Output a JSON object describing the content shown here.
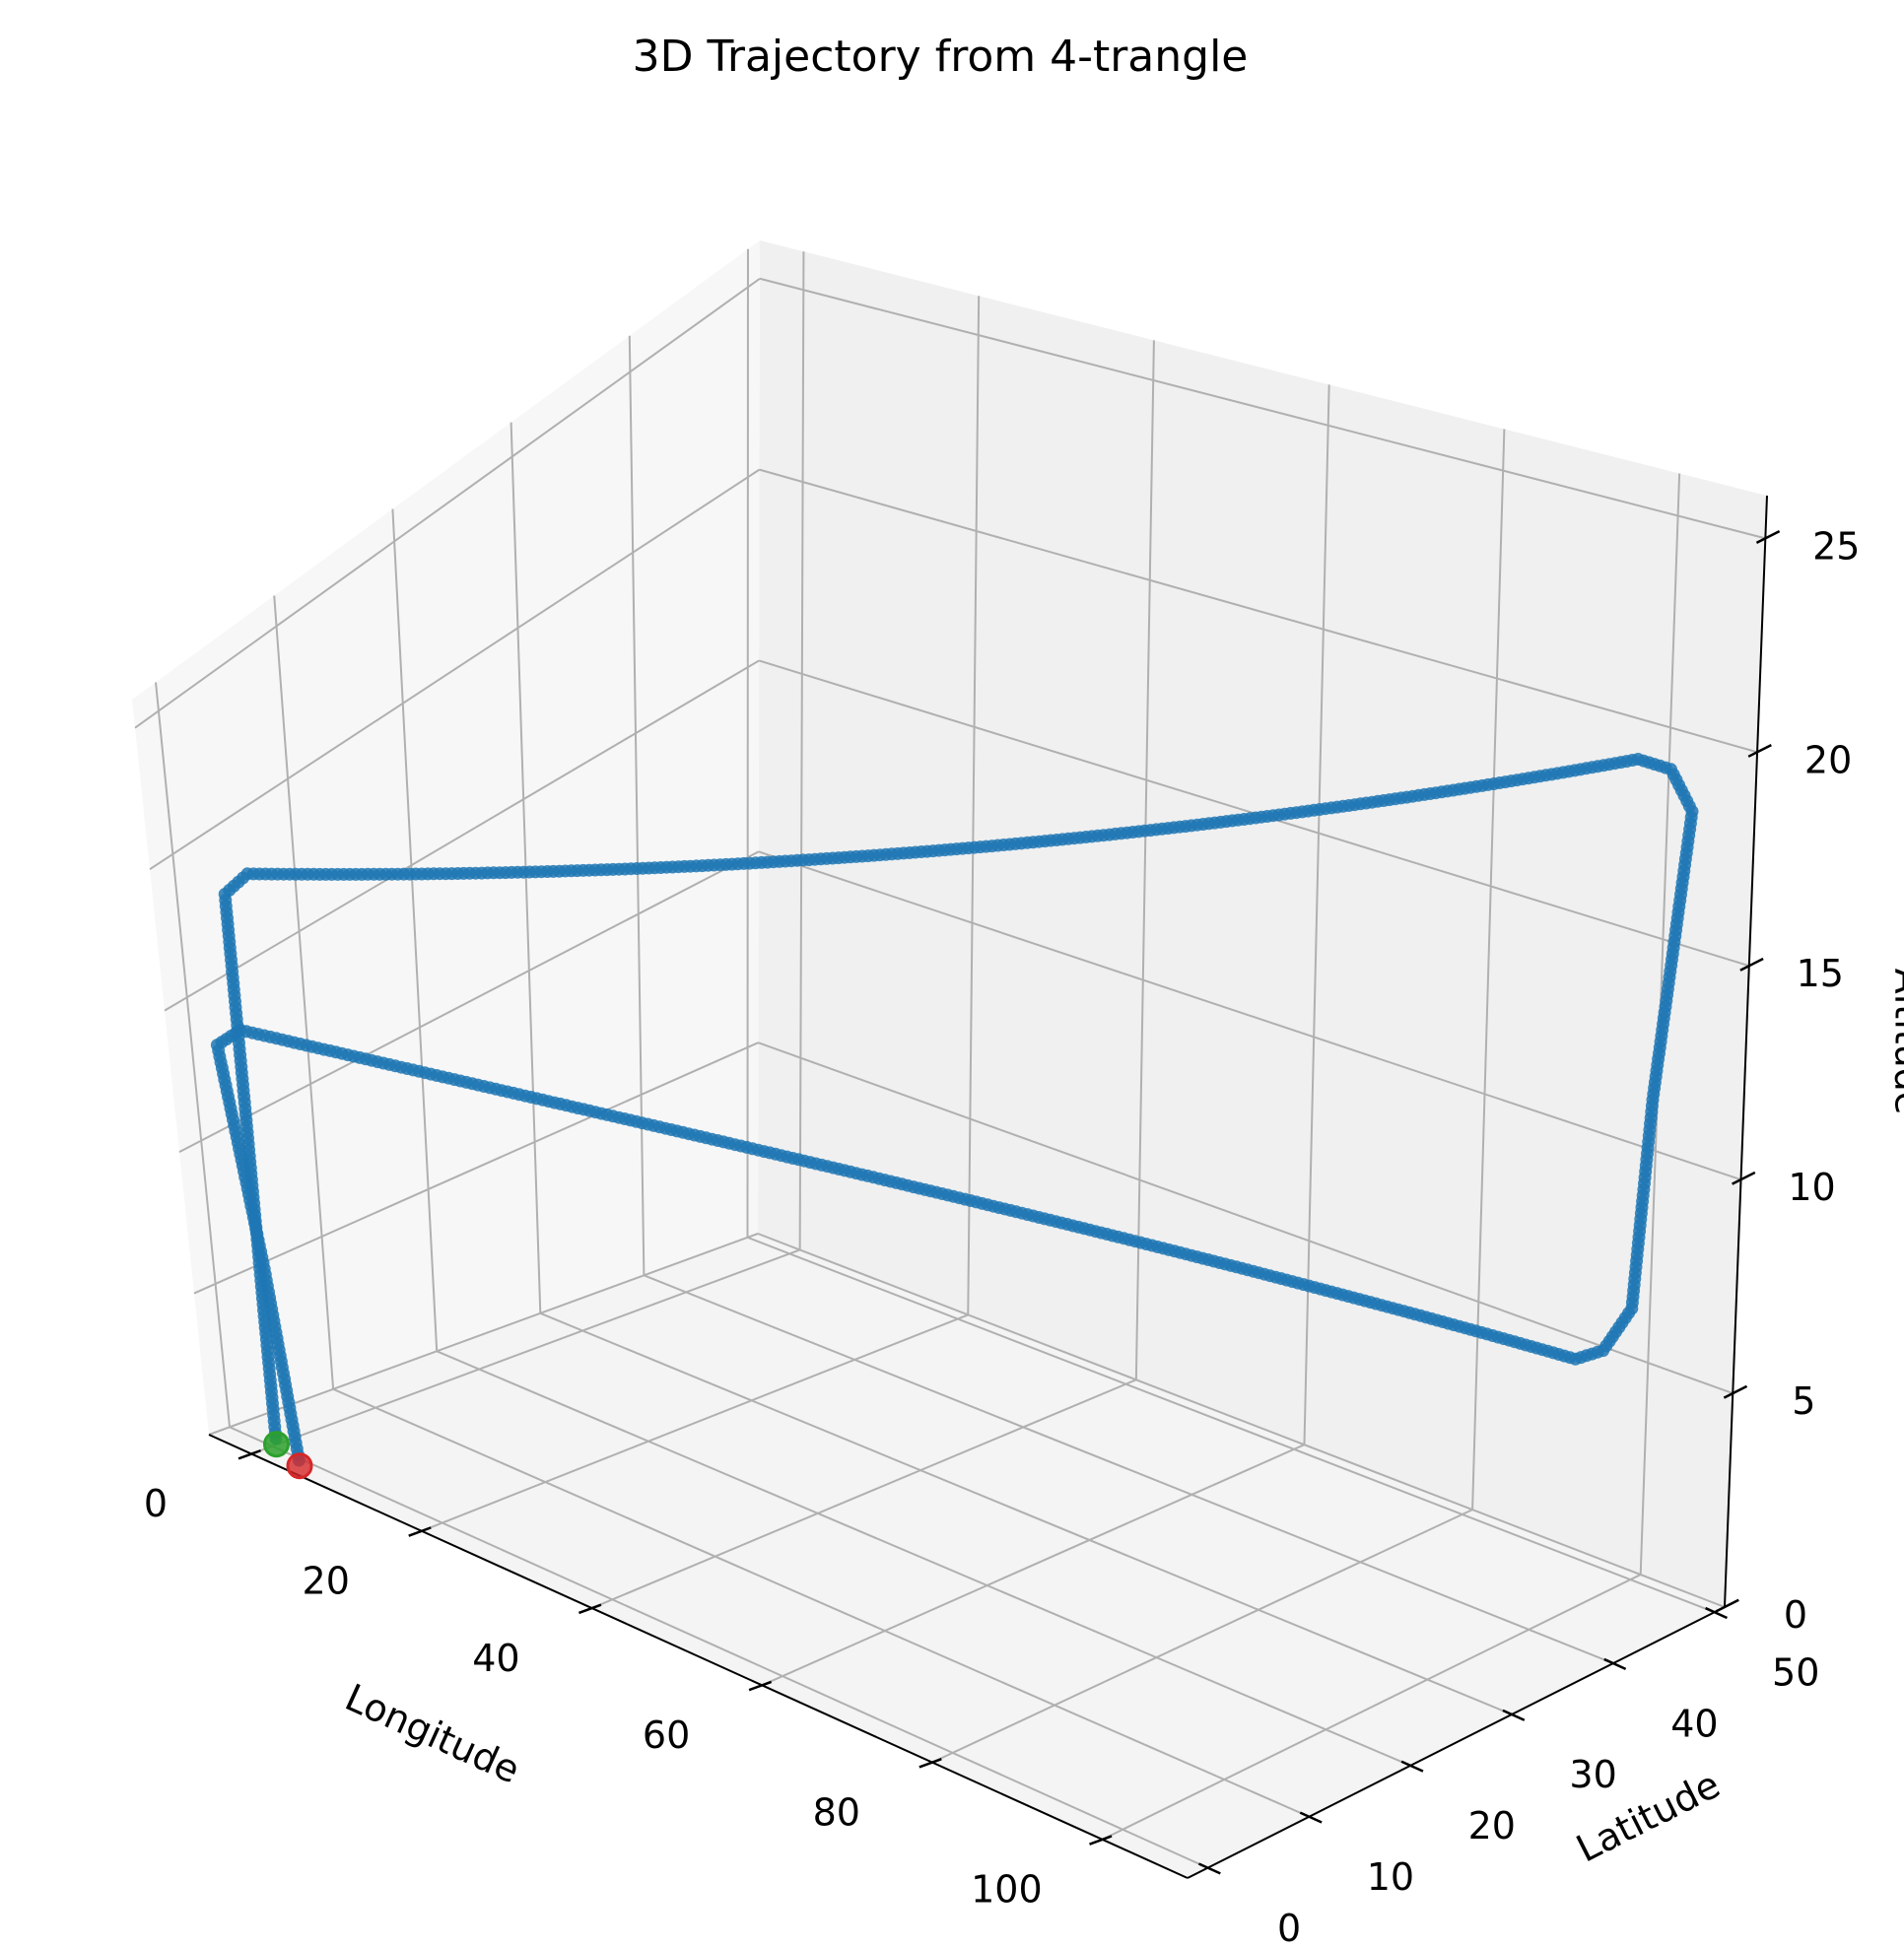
{
  "chart_data": {
    "type": "scatter",
    "projection": "3d",
    "title": "3D Trajectory from 4-trangle",
    "xlabel": "Longitude",
    "ylabel": "Latitude",
    "zlabel": "Altitude",
    "xlim": [
      -5,
      110
    ],
    "ylim": [
      -2,
      51
    ],
    "zlim": [
      0,
      26
    ],
    "xticks": [
      0,
      20,
      40,
      60,
      80,
      100
    ],
    "yticks": [
      0,
      10,
      20,
      30,
      40,
      50
    ],
    "zticks": [
      0,
      5,
      10,
      15,
      20,
      25
    ],
    "grid": true,
    "series": [
      {
        "color": "#1f77b4",
        "path": [
          [
            1.2,
            -0.5,
            0.5
          ],
          [
            1.2,
            -0.5,
            5.0
          ],
          [
            1.0,
            -0.3,
            12.0
          ],
          [
            1.0,
            -0.3,
            19.5
          ],
          [
            2.0,
            1.0,
            20.0
          ],
          [
            100.0,
            48.0,
            20.0
          ],
          [
            102.0,
            49.5,
            19.5
          ],
          [
            104.0,
            50.0,
            18.5
          ],
          [
            103.0,
            48.0,
            12.0
          ],
          [
            102.0,
            47.5,
            7.0
          ],
          [
            100.0,
            46.5,
            6.0
          ],
          [
            98.0,
            45.5,
            5.8
          ],
          [
            2.0,
            -0.8,
            15.0
          ],
          [
            0.5,
            -1.8,
            14.5
          ],
          [
            3.5,
            -1.8,
            7.0
          ],
          [
            5.5,
            -1.8,
            0.5
          ]
        ]
      }
    ],
    "start_marker": {
      "x": 1.2,
      "y": -0.5,
      "z": 0.3,
      "color": "#2ca02c"
    },
    "end_marker": {
      "x": 5.5,
      "y": -1.8,
      "z": 0.3,
      "color": "#d62728"
    }
  }
}
